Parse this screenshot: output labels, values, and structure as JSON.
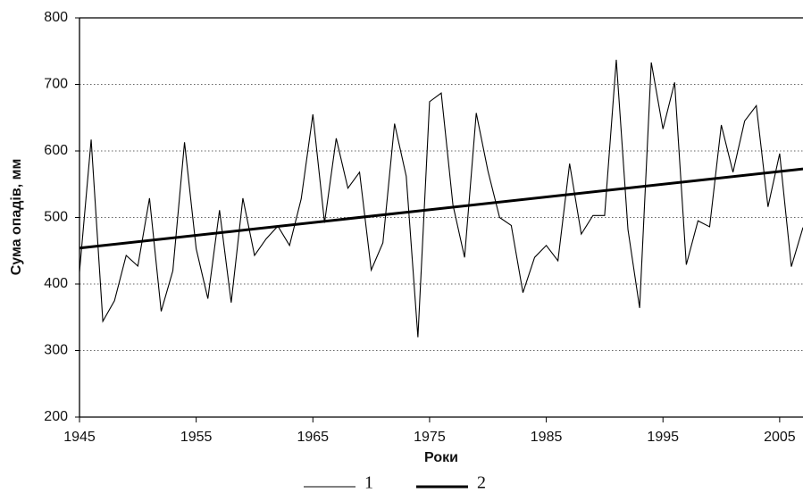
{
  "chart_data": {
    "type": "line",
    "x_label": "Роки",
    "y_label": "Сума опадів, мм",
    "xlim": [
      1945,
      2007
    ],
    "xticks": [
      1945,
      1955,
      1965,
      1975,
      1985,
      1995,
      2005
    ],
    "ylim": [
      200,
      800
    ],
    "yticks": [
      200,
      300,
      400,
      500,
      600,
      700,
      800
    ],
    "grid": true,
    "series": [
      {
        "name": "1",
        "color": "#000000",
        "x": [
          1945,
          1946,
          1947,
          1948,
          1949,
          1950,
          1951,
          1952,
          1953,
          1954,
          1955,
          1956,
          1957,
          1958,
          1959,
          1960,
          1961,
          1962,
          1963,
          1964,
          1965,
          1966,
          1967,
          1968,
          1969,
          1970,
          1971,
          1972,
          1973,
          1974,
          1975,
          1976,
          1977,
          1978,
          1979,
          1980,
          1981,
          1982,
          1983,
          1984,
          1985,
          1986,
          1987,
          1988,
          1989,
          1990,
          1991,
          1992,
          1993,
          1994,
          1995,
          1996,
          1997,
          1998,
          1999,
          2000,
          2001,
          2002,
          2003,
          2004,
          2005,
          2006,
          2007
        ],
        "values": [
          418,
          617,
          344,
          375,
          443,
          427,
          529,
          359,
          420,
          613,
          453,
          378,
          511,
          372,
          529,
          443,
          468,
          487,
          458,
          528,
          655,
          492,
          619,
          544,
          568,
          421,
          462,
          641,
          562,
          320,
          674,
          687,
          519,
          440,
          657,
          570,
          500,
          488,
          387,
          440,
          458,
          435,
          581,
          475,
          503,
          503,
          737,
          482,
          364,
          733,
          633,
          703,
          429,
          495,
          486,
          639,
          568,
          645,
          668,
          516,
          596,
          426,
          485
        ]
      },
      {
        "name": "2",
        "color": "#000000",
        "x": [
          1945,
          2007
        ],
        "values": [
          454,
          573
        ]
      }
    ]
  }
}
